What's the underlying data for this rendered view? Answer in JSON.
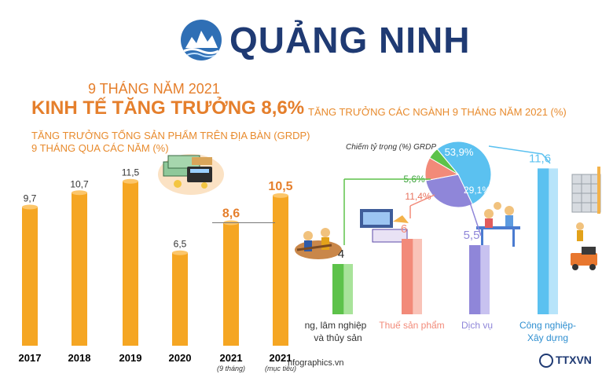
{
  "header": {
    "brand": "QUẢNG NINH",
    "period": "9 THÁNG NĂM 2021",
    "headline": "KINH TẾ TĂNG TRƯỞNG 8,6%"
  },
  "colors": {
    "orange_bar": "#f5a623",
    "orange_text": "#e57f2c",
    "green": "#5dc24a",
    "salmon": "#f28a79",
    "purple": "#8f86d9",
    "blue": "#5bc1f0",
    "navy": "#1f3a73"
  },
  "icons": [
    "quang-ninh-logo-icon",
    "money-calculator-icon",
    "mining-workers-icon",
    "market-stall-icon",
    "restaurant-icon",
    "construction-icon",
    "ttxvn-logo-icon"
  ],
  "footer": {
    "source": "nfographics.vn",
    "agency": "TTXVN"
  },
  "chart_data": [
    {
      "type": "bar",
      "title": "TĂNG TRƯỞNG TỔNG SẢN PHẨM TRÊN ĐỊA BÀN (GRDP) 9 THÁNG QUA CÁC NĂM (%)",
      "categories": [
        "2017",
        "2018",
        "2019",
        "2020",
        "2021",
        "2021"
      ],
      "category_notes": [
        "",
        "",
        "",
        "",
        "(9 tháng)",
        "(mục tiêu)"
      ],
      "values": [
        9.7,
        10.7,
        11.5,
        6.5,
        8.6,
        10.5
      ],
      "value_labels": [
        "9,7",
        "10,7",
        "11,5",
        "6,5",
        "8,6",
        "10,5"
      ],
      "ylim": [
        0,
        12.5
      ],
      "grid": false
    },
    {
      "type": "bar",
      "title": "TĂNG TRƯỞNG CÁC NGÀNH 9 THÁNG NĂM 2021 (%)",
      "categories": [
        "Nông, lâm nghiệp và thủy sản",
        "Thuế sản phẩm",
        "Dịch vụ",
        "Công nghiệp- Xây dựng"
      ],
      "visible_category_text": [
        "ng, lâm nghiệp",
        "và thủy sản",
        "Thuế sản phẩm",
        "Dịch vụ",
        "Công nghiệp-",
        "Xây dựng"
      ],
      "values": [
        4,
        6,
        5.5,
        11.6
      ],
      "value_labels": [
        "4",
        "6",
        "5,5",
        "11,6"
      ],
      "ylim": [
        0,
        12.5
      ]
    },
    {
      "type": "pie",
      "title": "Chiếm tỷ trọng (%) GRDP",
      "labels": [
        "Công nghiệp- Xây dựng",
        "Dịch vụ",
        "Thuế sản phẩm",
        "Nông, lâm nghiệp và thủy sản"
      ],
      "values": [
        53.9,
        29.1,
        11.4,
        5.6
      ],
      "value_labels": [
        "53,9%",
        "29,1%",
        "11,4%",
        "5,6%"
      ]
    }
  ]
}
